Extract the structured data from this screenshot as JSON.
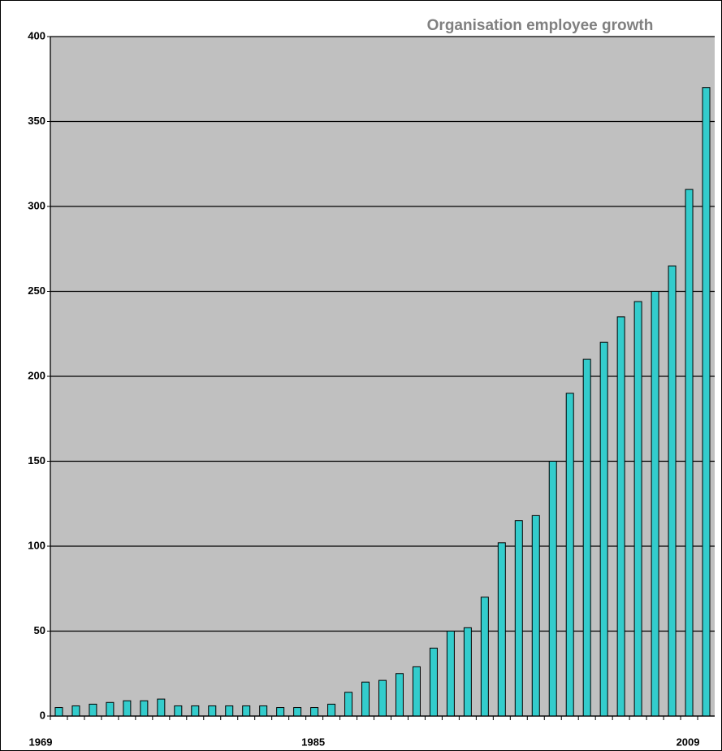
{
  "chart_data": {
    "type": "bar",
    "title": "Organisation employee growth",
    "categories": [
      "1969",
      null,
      null,
      null,
      null,
      null,
      null,
      null,
      null,
      null,
      null,
      null,
      null,
      null,
      null,
      null,
      "1985",
      null,
      null,
      null,
      null,
      null,
      null,
      null,
      null,
      null,
      null,
      null,
      null,
      null,
      null,
      null,
      null,
      null,
      null,
      null,
      null,
      null,
      "2009"
    ],
    "values": [
      5,
      6,
      7,
      8,
      9,
      9,
      10,
      6,
      6,
      6,
      6,
      6,
      6,
      5,
      5,
      5,
      7,
      14,
      20,
      21,
      25,
      29,
      40,
      50,
      52,
      70,
      102,
      115,
      118,
      150,
      190,
      210,
      220,
      235,
      244,
      250,
      265,
      310,
      370
    ],
    "color": "#33cccc",
    "ylim": [
      0,
      400
    ],
    "yticks": [
      0,
      50,
      100,
      150,
      200,
      250,
      300,
      350,
      400
    ],
    "grid": true
  }
}
